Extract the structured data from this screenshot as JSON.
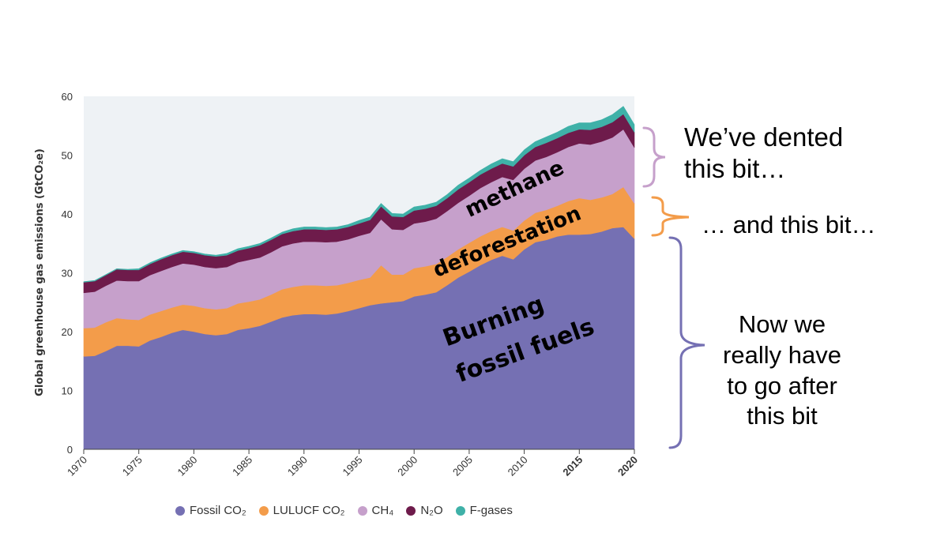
{
  "chart_data": {
    "type": "area",
    "stacked": true,
    "ylabel": "Global greenhouse gas emissions (GtCO₂e)",
    "ylim": [
      0,
      60
    ],
    "xlim": [
      1970,
      2020
    ],
    "yticks": [
      0,
      10,
      20,
      30,
      40,
      50,
      60
    ],
    "xticks": [
      "1970",
      "1975",
      "1980",
      "1985",
      "1990",
      "1995",
      "2000",
      "2005",
      "2010",
      "2015",
      "2020"
    ],
    "xtick_emphasis": {
      "2015": "#000000",
      "2020": "#e8733a"
    },
    "grid": false,
    "legend_position": "bottom",
    "x": [
      1970,
      1971,
      1972,
      1973,
      1974,
      1975,
      1976,
      1977,
      1978,
      1979,
      1980,
      1981,
      1982,
      1983,
      1984,
      1985,
      1986,
      1987,
      1988,
      1989,
      1990,
      1991,
      1992,
      1993,
      1994,
      1995,
      1996,
      1997,
      1998,
      1999,
      2000,
      2001,
      2002,
      2003,
      2004,
      2005,
      2006,
      2007,
      2008,
      2009,
      2010,
      2011,
      2012,
      2013,
      2014,
      2015,
      2016,
      2017,
      2018,
      2019,
      2020
    ],
    "series": [
      {
        "name": "Fossil CO₂",
        "color": "#7570b3",
        "values": [
          15.8,
          15.9,
          16.7,
          17.6,
          17.6,
          17.5,
          18.5,
          19.1,
          19.8,
          20.3,
          20.0,
          19.6,
          19.4,
          19.6,
          20.3,
          20.6,
          21.0,
          21.7,
          22.4,
          22.8,
          23.0,
          23.0,
          22.9,
          23.1,
          23.5,
          24.0,
          24.5,
          24.8,
          25.0,
          25.2,
          26.0,
          26.3,
          26.7,
          27.9,
          29.2,
          30.2,
          31.3,
          32.2,
          32.9,
          32.3,
          34.0,
          35.2,
          35.6,
          36.2,
          36.5,
          36.5,
          36.6,
          37.0,
          37.6,
          37.8,
          35.8
        ]
      },
      {
        "name": "LULUCF CO₂",
        "color": "#f39c4a",
        "values": [
          4.8,
          4.8,
          4.9,
          4.7,
          4.5,
          4.5,
          4.4,
          4.4,
          4.3,
          4.3,
          4.4,
          4.4,
          4.4,
          4.4,
          4.5,
          4.5,
          4.5,
          4.6,
          4.8,
          4.8,
          4.9,
          4.9,
          4.9,
          4.8,
          4.8,
          4.8,
          4.7,
          6.5,
          4.7,
          4.5,
          4.8,
          4.8,
          4.8,
          4.8,
          4.8,
          4.9,
          4.9,
          4.9,
          4.9,
          4.9,
          4.9,
          5.0,
          5.1,
          5.2,
          5.7,
          6.2,
          5.8,
          5.8,
          5.8,
          6.8,
          6.0
        ]
      },
      {
        "name": "CH₄",
        "color": "#c6a0cb",
        "values": [
          6.0,
          6.1,
          6.2,
          6.4,
          6.5,
          6.6,
          6.7,
          6.8,
          6.9,
          7.0,
          7.0,
          7.0,
          7.0,
          7.0,
          7.0,
          7.1,
          7.1,
          7.2,
          7.3,
          7.4,
          7.4,
          7.4,
          7.4,
          7.4,
          7.4,
          7.5,
          7.6,
          7.8,
          7.7,
          7.6,
          7.6,
          7.6,
          7.7,
          7.8,
          7.9,
          8.0,
          8.2,
          8.3,
          8.5,
          8.6,
          8.8,
          8.9,
          9.0,
          9.1,
          9.2,
          9.3,
          9.4,
          9.5,
          9.6,
          9.8,
          9.5
        ]
      },
      {
        "name": "N₂O",
        "color": "#6e1b4b",
        "values": [
          1.8,
          1.8,
          1.8,
          1.9,
          1.9,
          1.9,
          1.9,
          2.0,
          2.0,
          2.0,
          2.0,
          2.0,
          2.0,
          2.0,
          2.0,
          2.0,
          2.1,
          2.1,
          2.1,
          2.1,
          2.1,
          2.1,
          2.1,
          2.1,
          2.1,
          2.1,
          2.2,
          2.2,
          2.2,
          2.2,
          2.2,
          2.2,
          2.2,
          2.2,
          2.3,
          2.3,
          2.3,
          2.3,
          2.3,
          2.3,
          2.3,
          2.3,
          2.4,
          2.4,
          2.4,
          2.4,
          2.5,
          2.5,
          2.6,
          2.6,
          2.6
        ]
      },
      {
        "name": "F-gases",
        "color": "#3fb1a8",
        "values": [
          0.1,
          0.1,
          0.1,
          0.1,
          0.1,
          0.2,
          0.2,
          0.2,
          0.2,
          0.2,
          0.2,
          0.2,
          0.2,
          0.3,
          0.3,
          0.3,
          0.3,
          0.3,
          0.3,
          0.4,
          0.4,
          0.4,
          0.4,
          0.4,
          0.4,
          0.5,
          0.5,
          0.5,
          0.5,
          0.5,
          0.6,
          0.6,
          0.6,
          0.6,
          0.7,
          0.7,
          0.7,
          0.8,
          0.8,
          0.8,
          0.9,
          0.9,
          1.0,
          1.0,
          1.1,
          1.1,
          1.2,
          1.2,
          1.3,
          1.3,
          1.3
        ]
      }
    ],
    "annotations": [
      {
        "text": "methane",
        "series": "CH₄"
      },
      {
        "text": "deforestation",
        "series": "LULUCF CO₂"
      },
      {
        "text": "Burning fossil fuels",
        "series": "Fossil CO₂"
      }
    ]
  },
  "annotations": {
    "methane": "methane",
    "deforestation": "deforestation",
    "burning_line1": "Burning",
    "burning_line2": "fossil fuels"
  },
  "notes": {
    "dented_line1": "We’ve dented",
    "dented_line2": "this bit…",
    "and_this": "… and this bit…",
    "now_line1": "Now we",
    "now_line2": "really have",
    "now_line3": "to go after",
    "now_line4": "this bit"
  },
  "brace_colors": {
    "methane": "#c6a0cb",
    "deforestation": "#f39c4a",
    "fossil": "#7570b3"
  },
  "legend": [
    {
      "label": "Fossil CO₂",
      "color": "#7570b3"
    },
    {
      "label": "LULUCF CO₂",
      "color": "#f39c4a"
    },
    {
      "label": "CH₄",
      "color": "#c6a0cb"
    },
    {
      "label": "N₂O",
      "color": "#6e1b4b"
    },
    {
      "label": "F-gases",
      "color": "#3fb1a8"
    }
  ]
}
